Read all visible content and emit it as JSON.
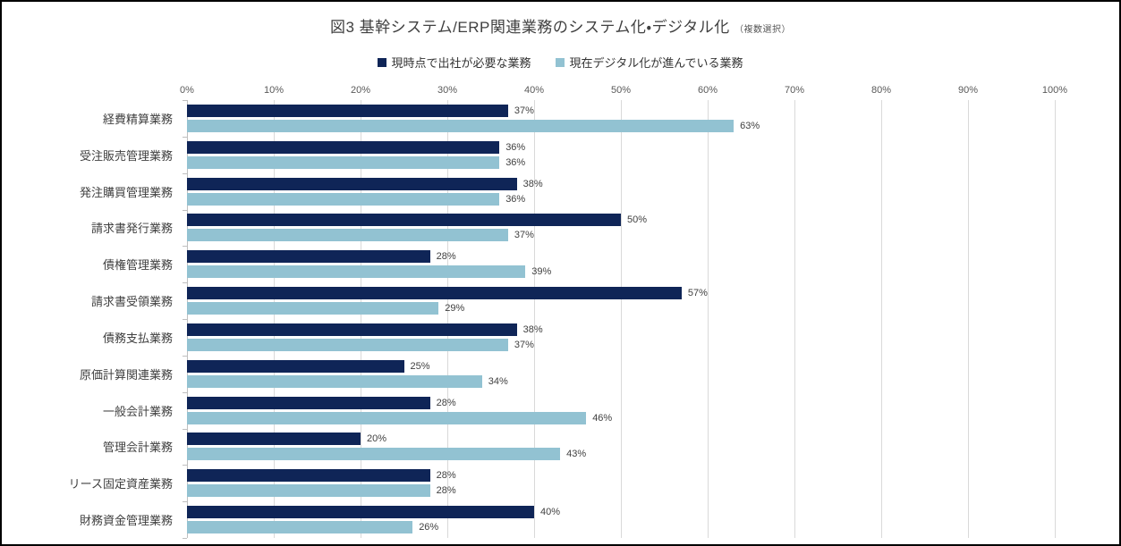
{
  "chart": {
    "title": "図3 基幹システム/ERP関連業務のシステム化・デジタル化",
    "title_suffix": "（複数選択）"
  },
  "chart_data": {
    "type": "bar",
    "orientation": "horizontal",
    "title": "図3 基幹システム/ERP関連業務のシステム化・デジタル化（複数選択）",
    "categories": [
      "経費精算業務",
      "受注販売管理業務",
      "発注購買管理業務",
      "請求書発行業務",
      "債権管理業務",
      "請求書受領業務",
      "債務支払業務",
      "原価計算関連業務",
      "一般会計業務",
      "管理会計業務",
      "リース固定資産業務",
      "財務資金管理業務"
    ],
    "series": [
      {
        "name": "現時点で出社が必要な業務",
        "color": "#0F2557",
        "values": [
          37,
          36,
          38,
          50,
          28,
          57,
          38,
          25,
          28,
          20,
          28,
          40
        ]
      },
      {
        "name": "現在デジタル化が進んでいる業務",
        "color": "#92C2D2",
        "values": [
          63,
          36,
          36,
          37,
          39,
          29,
          37,
          34,
          46,
          43,
          28,
          26
        ]
      }
    ],
    "value_suffix": "%",
    "data_labels": true,
    "x_axis": {
      "min": 0,
      "max": 100,
      "tick_labels": [
        "0%",
        "10%",
        "20%",
        "30%",
        "40%",
        "50%",
        "60%",
        "70%",
        "80%",
        "90%",
        "100%"
      ]
    },
    "grid": true,
    "legend_position": "top",
    "colors": {
      "gridline": "#D9D9D9",
      "axis_line": "#BFBFBF",
      "axis_label": "#595959",
      "category_label": "#404040",
      "data_label": "#404040",
      "title": "#404040",
      "border": "#000000"
    }
  }
}
